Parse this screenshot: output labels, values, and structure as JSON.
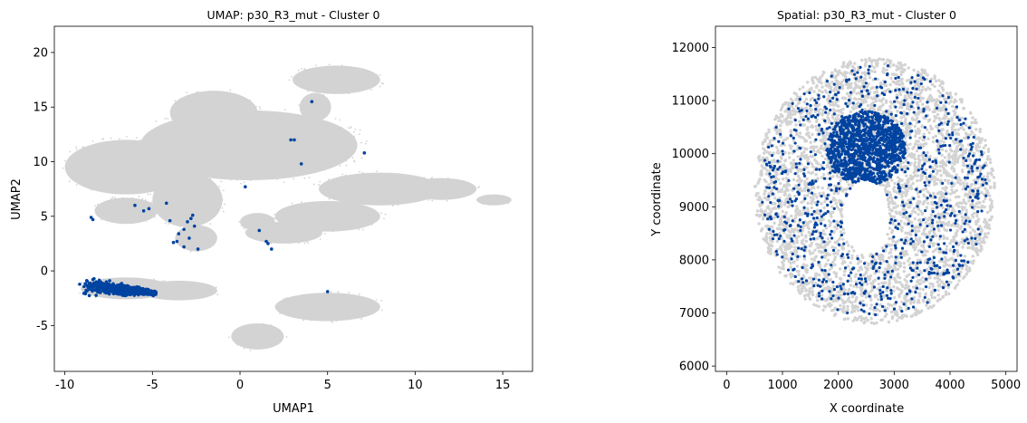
{
  "chart_data": [
    {
      "type": "scatter",
      "title": "UMAP: p30_R3_mut - Cluster 0",
      "xlabel": "UMAP1",
      "ylabel": "UMAP2",
      "xlim": [
        -10.6,
        16.7
      ],
      "ylim": [
        -9.2,
        22.4
      ],
      "xticks": [
        -10,
        -5,
        0,
        5,
        10,
        15
      ],
      "yticks": [
        -5,
        0,
        5,
        10,
        15,
        20
      ],
      "grid": false,
      "background_color": "#d3d3d3",
      "highlight_color": "#0043a0",
      "background_regions": [
        {
          "shape": "ellipse",
          "cx": 0.5,
          "cy": 11.5,
          "rx": 6.2,
          "ry": 3.2
        },
        {
          "shape": "ellipse",
          "cx": -1.5,
          "cy": 14.5,
          "rx": 2.5,
          "ry": 2.0
        },
        {
          "shape": "ellipse",
          "cx": -6.5,
          "cy": 9.5,
          "rx": 3.5,
          "ry": 2.5
        },
        {
          "shape": "ellipse",
          "cx": -6.5,
          "cy": 5.5,
          "rx": 1.8,
          "ry": 1.2
        },
        {
          "shape": "ellipse",
          "cx": -3.0,
          "cy": 6.5,
          "rx": 2.0,
          "ry": 2.5
        },
        {
          "shape": "ellipse",
          "cx": -2.5,
          "cy": 3.0,
          "rx": 1.2,
          "ry": 1.2
        },
        {
          "shape": "ellipse",
          "cx": 3.5,
          "cy": 10.5,
          "rx": 1.5,
          "ry": 1.3
        },
        {
          "shape": "ellipse",
          "cx": 5.5,
          "cy": 17.5,
          "rx": 2.5,
          "ry": 1.3
        },
        {
          "shape": "ellipse",
          "cx": 4.3,
          "cy": 15.0,
          "rx": 0.9,
          "ry": 1.3
        },
        {
          "shape": "ellipse",
          "cx": 8.0,
          "cy": 7.5,
          "rx": 3.5,
          "ry": 1.5
        },
        {
          "shape": "ellipse",
          "cx": 11.5,
          "cy": 7.5,
          "rx": 2.0,
          "ry": 1.0
        },
        {
          "shape": "ellipse",
          "cx": 5.0,
          "cy": 5.0,
          "rx": 3.0,
          "ry": 1.4
        },
        {
          "shape": "ellipse",
          "cx": 2.5,
          "cy": 3.5,
          "rx": 2.2,
          "ry": 1.0
        },
        {
          "shape": "ellipse",
          "cx": 1.0,
          "cy": 4.5,
          "rx": 1.0,
          "ry": 0.8
        },
        {
          "shape": "ellipse",
          "cx": 14.5,
          "cy": 6.5,
          "rx": 1.0,
          "ry": 0.5
        },
        {
          "shape": "ellipse",
          "cx": -6.5,
          "cy": -1.6,
          "rx": 2.6,
          "ry": 1.0
        },
        {
          "shape": "ellipse",
          "cx": -3.5,
          "cy": -1.8,
          "rx": 2.2,
          "ry": 0.9
        },
        {
          "shape": "ellipse",
          "cx": 5.0,
          "cy": -3.3,
          "rx": 3.0,
          "ry": 1.3
        },
        {
          "shape": "ellipse",
          "cx": 1.0,
          "cy": -6.0,
          "rx": 1.5,
          "ry": 1.2
        }
      ],
      "highlight_points": [
        [
          -8.5,
          4.9
        ],
        [
          -8.4,
          4.7
        ],
        [
          -6.0,
          6.0
        ],
        [
          -5.5,
          5.5
        ],
        [
          -5.2,
          5.7
        ],
        [
          -4.2,
          6.2
        ],
        [
          -4.0,
          4.6
        ],
        [
          -3.6,
          2.7
        ],
        [
          -3.5,
          3.4
        ],
        [
          -3.2,
          3.8
        ],
        [
          -3.0,
          4.5
        ],
        [
          -2.9,
          3.0
        ],
        [
          -2.7,
          5.1
        ],
        [
          -2.6,
          4.1
        ],
        [
          -2.4,
          2.0
        ],
        [
          -3.8,
          2.6
        ],
        [
          -3.2,
          2.2
        ],
        [
          -2.8,
          4.8
        ],
        [
          1.5,
          2.7
        ],
        [
          1.6,
          2.5
        ],
        [
          1.8,
          2.0
        ],
        [
          1.1,
          3.7
        ],
        [
          0.3,
          7.7
        ],
        [
          2.9,
          12.0
        ],
        [
          3.1,
          12.0
        ],
        [
          4.1,
          15.5
        ],
        [
          3.5,
          9.8
        ],
        [
          7.1,
          10.8
        ],
        [
          5.0,
          -1.9
        ]
      ],
      "highlight_cluster": {
        "x_range": [
          -9.2,
          -4.8
        ],
        "y_center": -1.9
      }
    },
    {
      "type": "scatter",
      "title": "Spatial: p30_R3_mut - Cluster 0",
      "xlabel": "X coordinate",
      "ylabel": "Y coordinate",
      "xlim": [
        -200,
        5200
      ],
      "ylim": [
        5900,
        12400
      ],
      "xticks": [
        0,
        1000,
        2000,
        3000,
        4000,
        5000
      ],
      "yticks": [
        6000,
        7000,
        8000,
        9000,
        10000,
        11000,
        12000
      ],
      "grid": false,
      "background_color": "#d3d3d3",
      "highlight_color": "#0043a0",
      "tissue": {
        "center": [
          2650,
          9300
        ],
        "radius_x": 2150,
        "radius_y": 2500
      },
      "background_gap": {
        "center": [
          2500,
          8800
        ],
        "radius_x": 420,
        "radius_y": 700
      },
      "dense_core": {
        "center": [
          2500,
          10100
        ],
        "radius_x": 700,
        "radius_y": 700
      },
      "highlight_count": 2600
    }
  ]
}
